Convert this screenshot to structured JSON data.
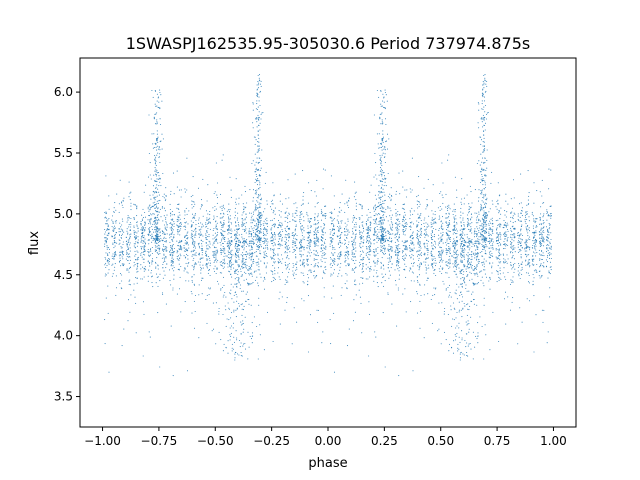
{
  "chart_data": {
    "type": "scatter",
    "title": "1SWASPJ162535.95-305030.6 Period 737974.875s",
    "xlabel": "phase",
    "ylabel": "flux",
    "xlim": [
      -1.1,
      1.1
    ],
    "ylim": [
      3.25,
      6.28
    ],
    "x_ticks": [
      -1.0,
      -0.75,
      -0.5,
      -0.25,
      0.0,
      0.25,
      0.5,
      0.75,
      1.0
    ],
    "x_tick_labels": [
      "−1.00",
      "−0.75",
      "−0.50",
      "−0.25",
      "0.00",
      "0.25",
      "0.50",
      "0.75",
      "1.00"
    ],
    "y_ticks": [
      3.5,
      4.0,
      4.5,
      5.0,
      5.5,
      6.0
    ],
    "y_tick_labels": [
      "3.5",
      "4.0",
      "4.5",
      "5.0",
      "5.5",
      "6.0"
    ],
    "grid": false,
    "legend": "none",
    "marker_color": "#1f77b4",
    "series": [
      {
        "points_summary": "phase-folded light curve, ~6000 points, mirrored over phase -1..1",
        "baseline_flux": 4.78,
        "baseline_scatter": 0.17,
        "flare_peaks": [
          {
            "phase": -0.31,
            "max_flux": 6.15
          },
          {
            "phase": 0.69,
            "max_flux": 6.15
          },
          {
            "phase": -0.76,
            "max_flux": 6.02
          },
          {
            "phase": 0.24,
            "max_flux": 6.02
          }
        ],
        "dips": [
          {
            "phase": -0.4,
            "min_flux": 3.8
          },
          {
            "phase": 0.6,
            "min_flux": 3.8
          }
        ]
      }
    ]
  }
}
